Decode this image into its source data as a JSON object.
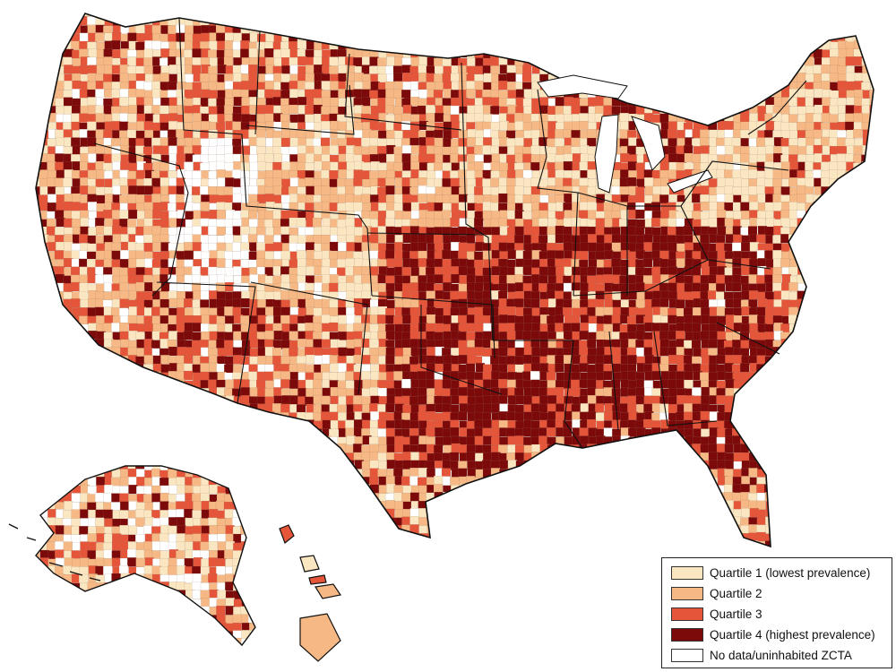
{
  "legend": {
    "items": [
      {
        "label": "Quartile 1 (lowest prevalence)",
        "color": "#fbe6c2"
      },
      {
        "label": "Quartile 2",
        "color": "#f6b884"
      },
      {
        "label": "Quartile 3",
        "color": "#e4553a"
      },
      {
        "label": "Quartile 4 (highest prevalence)",
        "color": "#7c0a0a"
      },
      {
        "label": "No data/uninhabited ZCTA",
        "color": "#ffffff"
      }
    ]
  },
  "colors": {
    "q1": "#fbe6c2",
    "q2": "#f6b884",
    "q3": "#e4553a",
    "q4": "#7c0a0a",
    "nodata": "#ffffff",
    "border": "#111111"
  }
}
